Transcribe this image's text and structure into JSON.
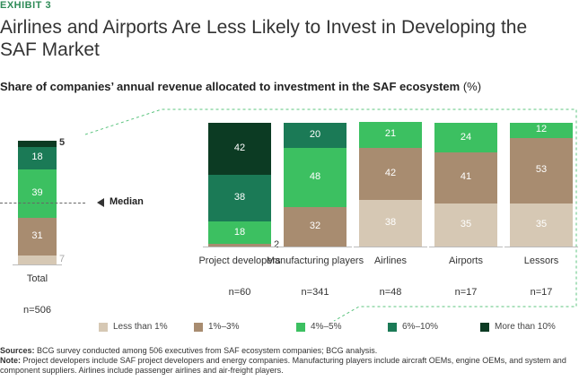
{
  "exhibit": "EXHIBIT 3",
  "chart_data": {
    "type": "stacked-bar",
    "title": "Airlines and Airports Are Less Likely to Invest in Developing the SAF Market",
    "subtitle": "Share of companies’ annual revenue allocated to investment in the SAF ecosystem",
    "unit": "(%)",
    "categories": [
      "Total",
      "Project developers",
      "Manufacturing players",
      "Airlines",
      "Airports",
      "Lessors"
    ],
    "n_labels": [
      "n=506",
      "n=60",
      "n=341",
      "n=48",
      "n=17",
      "n=17"
    ],
    "ylim": [
      0,
      100
    ],
    "series": [
      {
        "name": "Less than 1%",
        "color": "#d6c8b4",
        "values": [
          7,
          null,
          null,
          38,
          35,
          35
        ]
      },
      {
        "name": "1%–3%",
        "color": "#a88c70",
        "values": [
          31,
          2,
          32,
          42,
          41,
          53
        ]
      },
      {
        "name": "4%–5%",
        "color": "#3cc061",
        "values": [
          39,
          18,
          48,
          21,
          24,
          12
        ]
      },
      {
        "name": "6%–10%",
        "color": "#1b7a56",
        "values": [
          18,
          38,
          20,
          null,
          null,
          null
        ]
      },
      {
        "name": "More than 10%",
        "color": "#0c3b23",
        "values": [
          5,
          42,
          null,
          null,
          null,
          null
        ]
      }
    ],
    "median": {
      "label": "Median",
      "value": 50
    }
  },
  "sources": {
    "label": "Sources:",
    "text": "BCG survey conducted among 506 executives from SAF ecosystem companies; BCG analysis."
  },
  "note": {
    "label": "Note:",
    "text": "Project developers include SAF project developers and energy companies. Manufacturing players include aircraft OEMs, engine OEMs, and system and component suppliers. Airlines include passenger airlines and air-freight players."
  }
}
